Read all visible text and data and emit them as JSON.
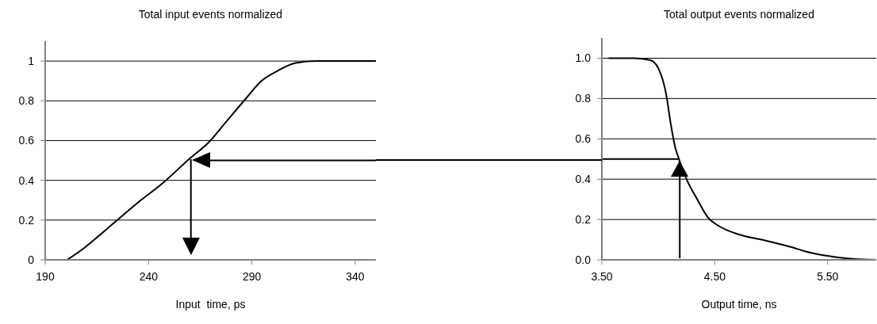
{
  "chart_data": [
    {
      "type": "line",
      "title": "Total input events normalized",
      "xlabel": "Input  time, ps",
      "x": [
        200.6,
        208.9,
        216.6,
        224.9,
        234.5,
        247.3,
        260,
        269,
        278,
        287,
        294.6,
        302.3,
        311.2,
        321.5,
        350
      ],
      "series": [
        {
          "color": "#000000",
          "values": [
            0,
            0.06,
            0.126,
            0.2,
            0.285,
            0.39,
            0.51,
            0.59,
            0.7,
            0.81,
            0.9,
            0.95,
            0.99,
            1.0,
            1.0
          ]
        }
      ],
      "ref_lines": [
        {
          "axis": "y",
          "value": 0.5
        },
        {
          "axis": "x",
          "value": 260.5
        }
      ],
      "xlim": [
        190,
        350
      ],
      "xticks": [
        190,
        240,
        290,
        340
      ],
      "ylim": [
        0,
        1.1
      ],
      "yticks": [
        0,
        0.2,
        0.4,
        0.6,
        0.8,
        1
      ],
      "grid": "y",
      "marker": "none",
      "line_style": "solid"
    },
    {
      "type": "line",
      "title": "Total output events normalized",
      "xlabel": "Output time, ns",
      "x": [
        3.56,
        3.79,
        3.93,
        4.0,
        4.07,
        4.11,
        4.15,
        4.18,
        4.25,
        4.35,
        4.44,
        4.53,
        4.72,
        4.93,
        5.16,
        5.35,
        5.58,
        5.74,
        5.93
      ],
      "series": [
        {
          "color": "#000000",
          "values": [
            1.0,
            1.0,
            0.99,
            0.95,
            0.82,
            0.675,
            0.557,
            0.505,
            0.4,
            0.295,
            0.21,
            0.17,
            0.125,
            0.098,
            0.066,
            0.035,
            0.013,
            0.004,
            0.0
          ]
        }
      ],
      "ref_lines": [
        {
          "axis": "y",
          "value": 0.5
        },
        {
          "axis": "x",
          "value": 4.19
        }
      ],
      "xlim": [
        3.5,
        5.93
      ],
      "xticks": [
        {
          "value": 3.5,
          "label": "3.50"
        },
        {
          "value": 4.5,
          "label": "4.50"
        },
        {
          "value": 5.5,
          "label": "5.50"
        }
      ],
      "ylim": [
        0,
        1.1
      ],
      "yticks": [
        {
          "value": 0,
          "label": "0.0"
        },
        {
          "value": 0.2,
          "label": "0.2"
        },
        {
          "value": 0.4,
          "label": "0.4"
        },
        {
          "value": 0.6,
          "label": "0.6"
        },
        {
          "value": 0.8,
          "label": "0.8"
        },
        {
          "value": 1.0,
          "label": "1.0"
        }
      ],
      "grid": "y",
      "marker": "none",
      "line_style": "solid"
    }
  ]
}
